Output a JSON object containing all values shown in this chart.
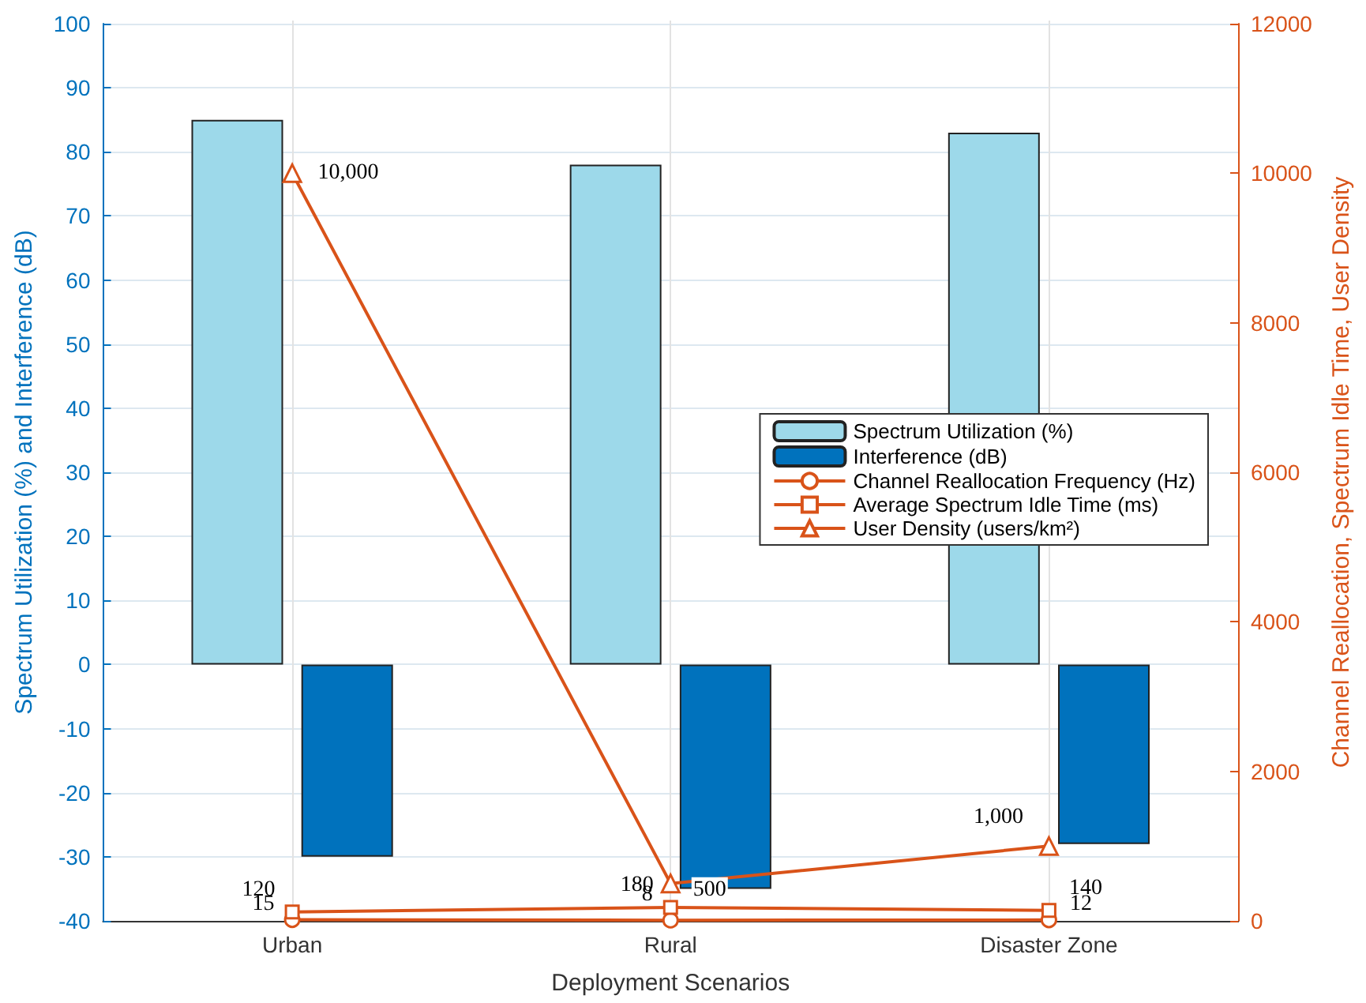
{
  "chart_data": {
    "type": "bar",
    "xlabel": "Deployment Scenarios",
    "ylabel": "Spectrum Utilization (%) and Interference (dB)",
    "y2label": "Channel Reallocation, Spectrum Idle Time, User Density",
    "categories": [
      "Urban",
      "Rural",
      "Disaster Zone"
    ],
    "series": [
      {
        "name": "Spectrum Utilization (%)",
        "color": "#9dd9ea",
        "values": [
          85,
          78,
          83
        ]
      },
      {
        "name": "Interference (dB)",
        "color": "#0072bd",
        "values": [
          -30,
          -35,
          -28
        ]
      },
      {
        "name": "Channel Reallocation Frequency (Hz)",
        "type": "line",
        "axis": "y2",
        "marker": "circle",
        "color": "#d95319",
        "values": [
          15,
          8,
          12
        ],
        "value_labels": [
          "15",
          "8",
          "12"
        ]
      },
      {
        "name": "Average Spectrum Idle Time (ms)",
        "type": "line",
        "axis": "y2",
        "marker": "square",
        "color": "#d95319",
        "values": [
          120,
          180,
          140
        ],
        "value_labels": [
          "120",
          "180",
          "140"
        ]
      },
      {
        "name": "User Density (users/km²)",
        "type": "line",
        "axis": "y2",
        "marker": "triangle",
        "color": "#d95319",
        "values": [
          10000,
          500,
          1000
        ],
        "value_labels": [
          "10,000",
          "500",
          "1,000"
        ]
      }
    ],
    "ylim": [
      -40,
      100
    ],
    "yticks": [
      -40,
      -30,
      -20,
      -10,
      0,
      10,
      20,
      30,
      40,
      50,
      60,
      70,
      80,
      90,
      100
    ],
    "y2lim": [
      0,
      12000
    ],
    "y2ticks": [
      0,
      2000,
      4000,
      6000,
      8000,
      10000,
      12000
    ],
    "grid": true,
    "legend": "right"
  }
}
